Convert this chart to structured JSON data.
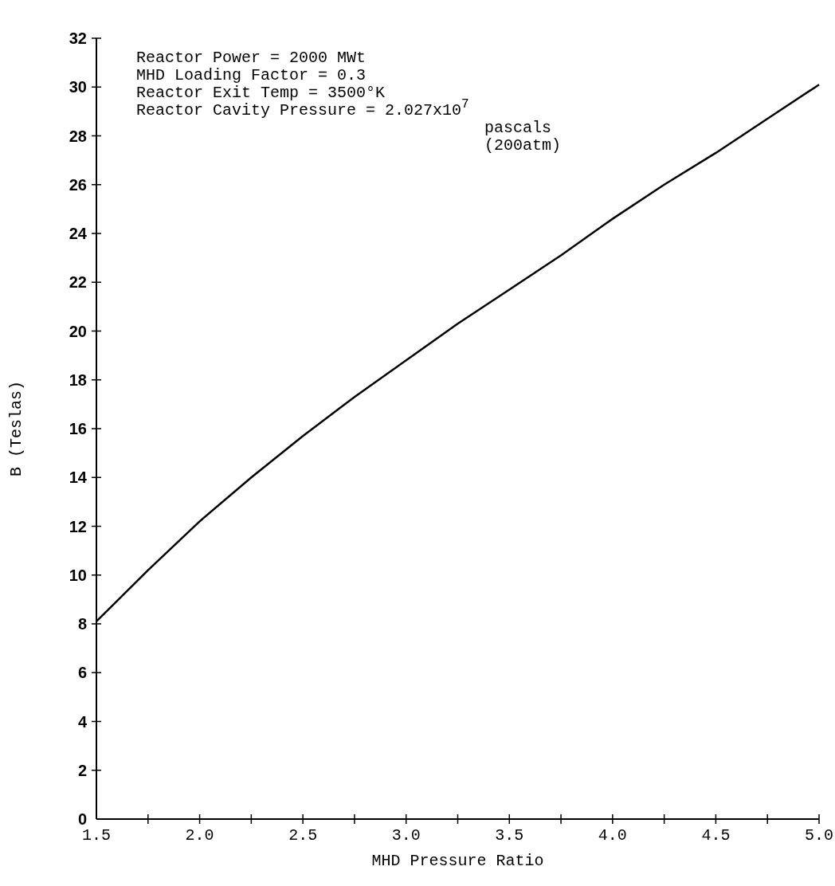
{
  "chart_data": {
    "type": "line",
    "xlabel": "MHD Pressure Ratio",
    "ylabel": "B (Teslas)",
    "annotations": [
      "Reactor Power = 2000 MWt",
      "MHD Loading Factor = 0.3",
      "Reactor Exit Temp = 3500°K",
      "Reactor Cavity Pressure = 2.027x10$^{7}$",
      "pascals",
      "(200atm)"
    ],
    "x": [
      1.5,
      1.75,
      2.0,
      2.25,
      2.5,
      2.75,
      3.0,
      3.25,
      3.5,
      3.75,
      4.0,
      4.25,
      4.5,
      4.75,
      5.0
    ],
    "series": [
      {
        "color": "#000000",
        "values": [
          8.1,
          10.2,
          12.2,
          14.0,
          15.7,
          17.3,
          18.8,
          20.3,
          21.7,
          23.1,
          24.6,
          26.0,
          27.3,
          28.7,
          30.1
        ]
      }
    ],
    "xlim": [
      1.5,
      5.0
    ],
    "ylim": [
      0,
      32
    ],
    "xticks": [
      1.5,
      {
        "value": 1.75,
        "label": null
      },
      {
        "value": 2,
        "label": "2.0"
      },
      {
        "value": 2.25,
        "label": null
      },
      2.5,
      {
        "value": 2.75,
        "label": null
      },
      {
        "value": 3,
        "label": "3.0"
      },
      {
        "value": 3.25,
        "label": null
      },
      3.5,
      {
        "value": 3.75,
        "label": null
      },
      {
        "value": 4,
        "label": "4.0"
      },
      {
        "value": 4.25,
        "label": null
      },
      4.5,
      {
        "value": 4.75,
        "label": null
      },
      {
        "value": 5,
        "label": "5.0"
      }
    ],
    "yticks": [
      0,
      2,
      4,
      6,
      8,
      10,
      12,
      14,
      16,
      18,
      20,
      22,
      24,
      26,
      28,
      30,
      32
    ],
    "grid": false,
    "marker": "none",
    "line_style": "solid"
  }
}
